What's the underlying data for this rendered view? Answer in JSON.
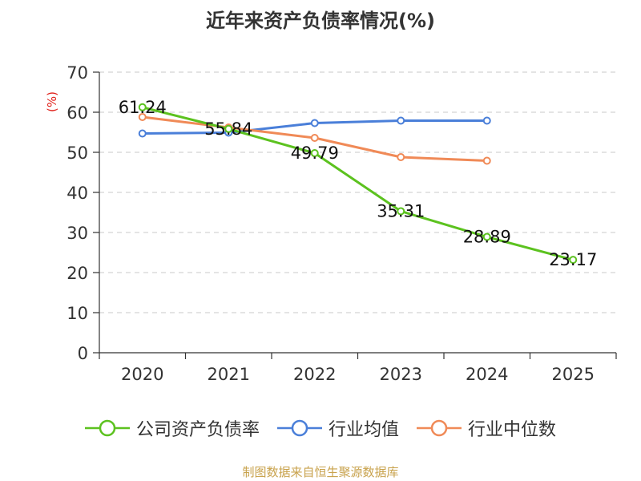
{
  "chart_data": {
    "type": "line",
    "title": "近年来资产负债率情况(%)",
    "ylabel": "(%)",
    "categories": [
      "2020",
      "2021",
      "2022",
      "2023",
      "2024",
      "2025"
    ],
    "ylim": [
      0,
      70
    ],
    "yticks": [
      "0",
      "10",
      "20",
      "30",
      "40",
      "50",
      "60",
      "70"
    ],
    "grid": true,
    "legend_position": "bottom",
    "series": [
      {
        "name": "公司资产负债率",
        "color": "#5cc21f",
        "values": [
          61.24,
          55.84,
          49.79,
          35.31,
          28.89,
          23.17
        ],
        "labels": [
          "61.24",
          "55.84",
          "49.79",
          "35.31",
          "28.89",
          "23.17"
        ]
      },
      {
        "name": "行业均值",
        "color": "#4a7fd9",
        "values": [
          54.7,
          54.9,
          57.3,
          57.9,
          57.9,
          null
        ]
      },
      {
        "name": "行业中位数",
        "color": "#f08a57",
        "values": [
          58.8,
          56.2,
          53.6,
          48.8,
          47.9,
          null
        ]
      }
    ]
  },
  "source_text": "制图数据来自恒生聚源数据库"
}
